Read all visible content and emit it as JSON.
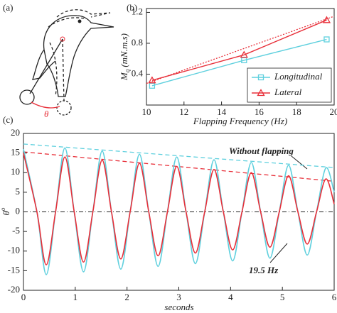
{
  "panel_a": {
    "label": "(a)",
    "angle_label": "θ"
  },
  "chart_data": [
    {
      "type": "line",
      "panel_label": "(b)",
      "xlabel": "Flapping Frequency (Hz)",
      "ylabel": {
        "symbol": "M",
        "sub": "q",
        "unit": "(mN.m.s)"
      },
      "x": [
        10.3,
        15.2,
        19.6
      ],
      "xlim": [
        10,
        20
      ],
      "xticks": [
        10,
        12,
        14,
        16,
        18,
        20
      ],
      "ylim": [
        0,
        1.25
      ],
      "yticks": [
        0.4,
        0.8,
        1.2
      ],
      "legend": "lower right",
      "series": [
        {
          "name": "Longitudinal",
          "color": "#5fd0de",
          "marker": "square",
          "values": [
            0.25,
            0.58,
            0.85
          ]
        },
        {
          "name": "Lateral",
          "color": "#e8303a",
          "marker": "triangle",
          "values": [
            0.32,
            0.65,
            1.1
          ]
        }
      ],
      "trend_lines": [
        {
          "color": "#e8303a",
          "x": [
            10,
            20
          ],
          "values": [
            0.28,
            1.15
          ]
        }
      ]
    },
    {
      "type": "line",
      "panel_label": "(c)",
      "xlabel": "seconds",
      "ylabel": {
        "symbol": "θ",
        "sup": "o"
      },
      "x": [
        0,
        0.26,
        0.44,
        0.62,
        0.8,
        0.98,
        1.16,
        1.34,
        1.52,
        1.7,
        1.88,
        2.06,
        2.24,
        2.42,
        2.6,
        2.78,
        2.96,
        3.14,
        3.32,
        3.5,
        3.68,
        3.86,
        4.04,
        4.22,
        4.4,
        4.58,
        4.76,
        4.94,
        5.12,
        5.3,
        5.48,
        5.66,
        5.84,
        6
      ],
      "xlim": [
        0,
        6
      ],
      "xticks": [
        0,
        1,
        2,
        3,
        4,
        5,
        6
      ],
      "ylim": [
        -20,
        20
      ],
      "yticks": [
        -20,
        -15,
        -10,
        -5,
        0,
        5,
        10,
        15,
        20
      ],
      "series": [
        {
          "color": "#5fd0de",
          "values": [
            16,
            0,
            -16,
            0,
            16.3,
            0,
            -15.3,
            0,
            15.5,
            0,
            -14.6,
            0,
            14.7,
            0,
            -13.9,
            0,
            14,
            0,
            -13.2,
            0,
            13.3,
            0,
            -12.5,
            0,
            12.6,
            0,
            -11.8,
            0,
            11.9,
            0,
            -11,
            0,
            11.2,
            5
          ]
        },
        {
          "color": "#e8303a",
          "values": [
            15,
            0,
            -13.5,
            0,
            14,
            0,
            -12.8,
            0,
            13.2,
            0,
            -12,
            0,
            12.4,
            0,
            -11.2,
            0,
            11.6,
            0,
            -10.5,
            0,
            10.8,
            0,
            -9.7,
            0,
            10,
            0,
            -9,
            0,
            9.2,
            0,
            -8.2,
            0,
            8.4,
            2
          ]
        }
      ],
      "trend_lines": [
        {
          "color": "#5fd0de",
          "x": [
            0,
            6
          ],
          "values": [
            17.3,
            11.3
          ]
        },
        {
          "color": "#e8303a",
          "x": [
            0,
            6
          ],
          "values": [
            15.3,
            7.8
          ]
        }
      ],
      "reference_line": 0,
      "annotations": [
        "Without flapping",
        "19.5 Hz"
      ]
    }
  ]
}
